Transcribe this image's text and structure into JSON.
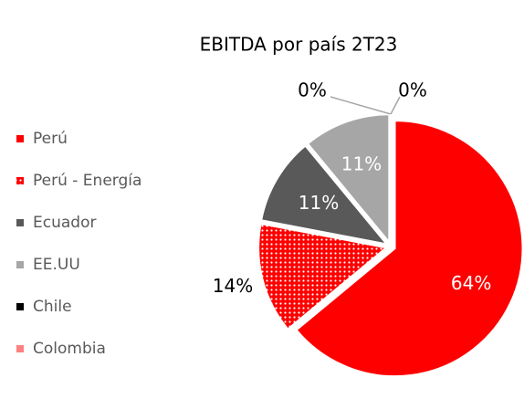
{
  "chart_data": {
    "type": "pie",
    "title": "EBITDA por país 2T23",
    "categories": [
      "Perú",
      "Perú - Energía",
      "Ecuador",
      "EE.UU",
      "Chile",
      "Colombia"
    ],
    "values": [
      64,
      14,
      11,
      11,
      0,
      0
    ],
    "value_labels": [
      "64%",
      "14%",
      "11%",
      "11%",
      "0%",
      "0%"
    ],
    "colors": [
      "#ff0000",
      "#ff0000",
      "#595959",
      "#a6a6a6",
      "#000000",
      "#ff8080"
    ],
    "patterns": [
      null,
      "dots",
      null,
      null,
      null,
      null
    ],
    "legend": "left"
  }
}
